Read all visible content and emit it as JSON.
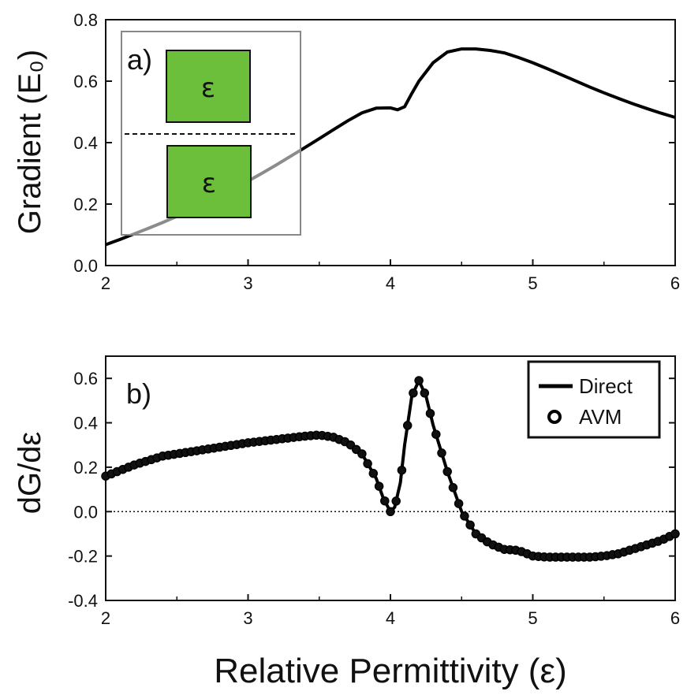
{
  "chart_data": [
    {
      "id": "a",
      "type": "line",
      "panel_label": "a)",
      "ylabel": "Gradient (E₀)",
      "xlim": [
        2,
        6
      ],
      "ylim": [
        0.0,
        0.8
      ],
      "xticks": [
        "2",
        "3",
        "4",
        "5",
        "6"
      ],
      "yticks": [
        "0.0",
        "0.2",
        "0.4",
        "0.6",
        "0.8"
      ],
      "series": [
        {
          "x": [
            2.0,
            2.1,
            2.2,
            2.3,
            2.4,
            2.5,
            2.6,
            2.7,
            2.8,
            2.9,
            3.0,
            3.1,
            3.2,
            3.3,
            3.4,
            3.5,
            3.6,
            3.7,
            3.8,
            3.9,
            4.0,
            4.05,
            4.1,
            4.15,
            4.2,
            4.3,
            4.4,
            4.5,
            4.6,
            4.7,
            4.8,
            4.9,
            5.0,
            5.1,
            5.2,
            5.3,
            5.4,
            5.5,
            5.6,
            5.7,
            5.8,
            5.9,
            6.0
          ],
          "y": [
            0.068,
            0.085,
            0.103,
            0.121,
            0.14,
            0.16,
            0.181,
            0.203,
            0.226,
            0.25,
            0.275,
            0.301,
            0.328,
            0.356,
            0.384,
            0.413,
            0.442,
            0.471,
            0.497,
            0.512,
            0.513,
            0.507,
            0.517,
            0.56,
            0.6,
            0.66,
            0.695,
            0.705,
            0.705,
            0.7,
            0.692,
            0.677,
            0.66,
            0.641,
            0.621,
            0.601,
            0.581,
            0.562,
            0.544,
            0.527,
            0.511,
            0.496,
            0.482
          ]
        }
      ],
      "inset": {
        "labels": [
          "ε",
          "ε"
        ],
        "box_color": "#6bbf3b"
      }
    },
    {
      "id": "b",
      "type": "line",
      "panel_label": "b)",
      "ylabel": "dG/dε",
      "xlabel": "Relative Permittivity (ε)",
      "xlim": [
        2,
        6
      ],
      "ylim": [
        -0.4,
        0.7
      ],
      "xticks": [
        "2",
        "3",
        "4",
        "5",
        "6"
      ],
      "yticks": [
        "-0.4",
        "-0.2",
        "0.0",
        "0.2",
        "0.4",
        "0.6"
      ],
      "legend": {
        "position": "top-right",
        "entries": [
          "Direct",
          "AVM"
        ]
      },
      "series": [
        {
          "name": "Direct",
          "style": "line",
          "x": [
            2.0,
            2.2,
            2.4,
            2.6,
            2.8,
            3.0,
            3.2,
            3.4,
            3.5,
            3.6,
            3.7,
            3.8,
            3.9,
            3.95,
            4.0,
            4.03,
            4.07,
            4.1,
            4.15,
            4.2,
            4.25,
            4.3,
            4.4,
            4.5,
            4.6,
            4.7,
            4.8,
            4.9,
            5.0,
            5.1,
            5.2,
            5.3,
            5.4,
            5.5,
            5.6,
            5.7,
            5.8,
            5.9,
            6.0
          ],
          "y": [
            0.16,
            0.21,
            0.25,
            0.27,
            0.29,
            0.31,
            0.325,
            0.34,
            0.345,
            0.335,
            0.31,
            0.26,
            0.15,
            0.06,
            0.0,
            0.02,
            0.13,
            0.3,
            0.52,
            0.59,
            0.52,
            0.39,
            0.18,
            0.0,
            -0.1,
            -0.145,
            -0.17,
            -0.175,
            -0.2,
            -0.205,
            -0.205,
            -0.205,
            -0.205,
            -0.2,
            -0.19,
            -0.17,
            -0.15,
            -0.13,
            -0.1
          ]
        },
        {
          "name": "AVM",
          "style": "markers",
          "x": [
            2.0,
            2.2,
            2.4,
            2.6,
            2.8,
            3.0,
            3.2,
            3.4,
            3.5,
            3.6,
            3.7,
            3.8,
            3.9,
            3.95,
            4.0,
            4.03,
            4.07,
            4.1,
            4.15,
            4.2,
            4.25,
            4.3,
            4.4,
            4.5,
            4.6,
            4.7,
            4.8,
            4.9,
            5.0,
            5.1,
            5.2,
            5.3,
            5.4,
            5.5,
            5.6,
            5.7,
            5.8,
            5.9,
            6.0
          ],
          "y": [
            0.16,
            0.21,
            0.25,
            0.27,
            0.29,
            0.31,
            0.325,
            0.34,
            0.345,
            0.335,
            0.31,
            0.26,
            0.15,
            0.06,
            0.0,
            0.02,
            0.13,
            0.3,
            0.52,
            0.59,
            0.52,
            0.39,
            0.18,
            0.0,
            -0.1,
            -0.145,
            -0.17,
            -0.175,
            -0.2,
            -0.205,
            -0.205,
            -0.205,
            -0.205,
            -0.2,
            -0.19,
            -0.17,
            -0.15,
            -0.13,
            -0.1
          ]
        }
      ]
    }
  ]
}
